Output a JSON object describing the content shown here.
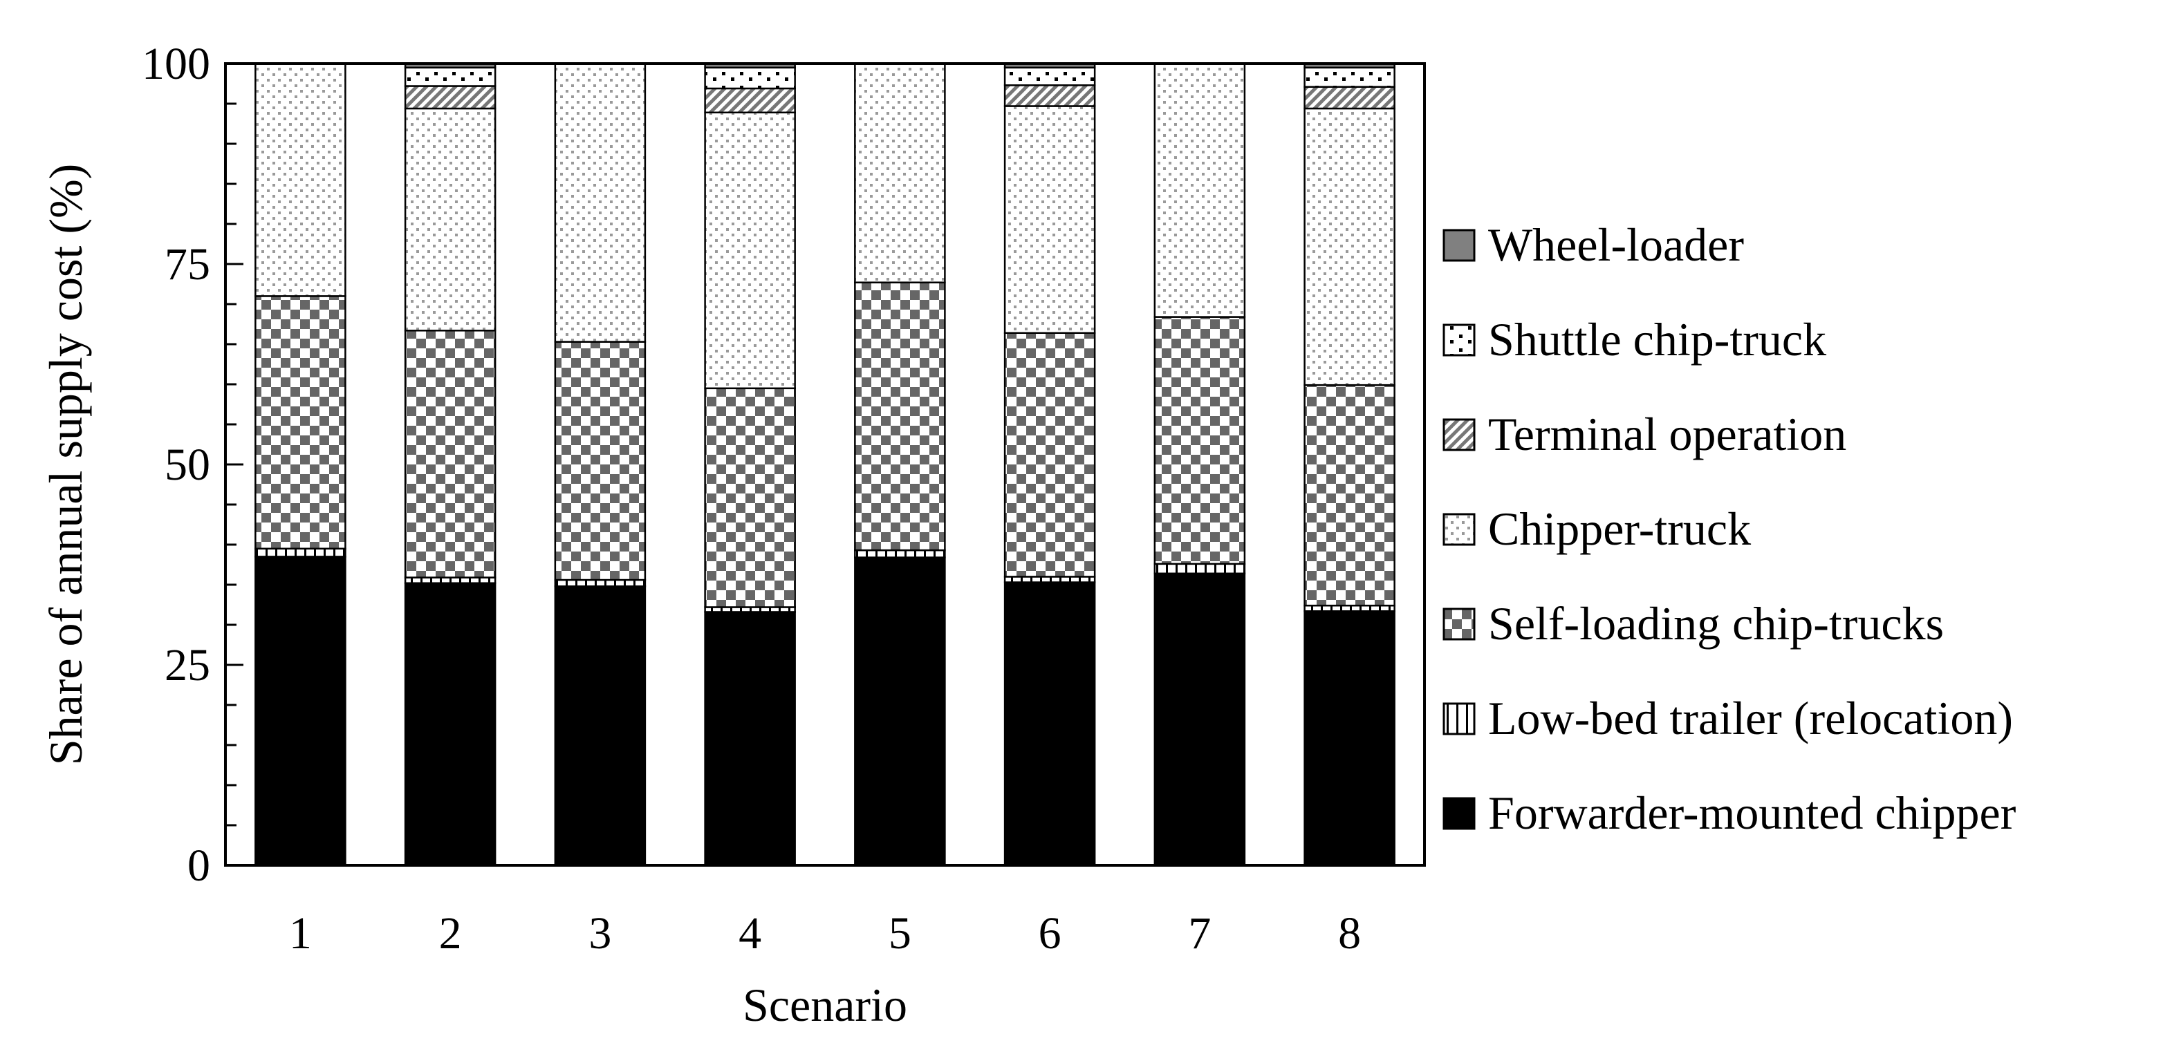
{
  "chart_data": {
    "type": "bar",
    "stacked": true,
    "title": "",
    "xlabel": "Scenario",
    "ylabel": "Share of annual supply cost (%)",
    "ylim": [
      0,
      100
    ],
    "yticks": [
      "0",
      "25",
      "50",
      "75",
      "100"
    ],
    "grid": false,
    "legend_position": "right",
    "categories": [
      "1",
      "2",
      "3",
      "4",
      "5",
      "6",
      "7",
      "8"
    ],
    "series": [
      {
        "name": "Forwarder-mounted chipper",
        "pattern": "solid",
        "color": "#000000",
        "values": [
          38.5,
          35.2,
          34.8,
          31.6,
          38.4,
          35.3,
          36.4,
          31.7
        ]
      },
      {
        "name": "Low-bed trailer (relocation)",
        "pattern": "vertical-lines",
        "color": "#ffffff",
        "values": [
          1.0,
          0.7,
          0.8,
          0.6,
          0.9,
          0.7,
          1.2,
          0.7
        ]
      },
      {
        "name": "Self-loading chip-trucks",
        "pattern": "checker",
        "color": "#666666",
        "values": [
          31.5,
          30.8,
          29.7,
          27.3,
          33.4,
          30.4,
          30.8,
          27.5
        ]
      },
      {
        "name": "Chipper-truck",
        "pattern": "dots",
        "color": "#f2f2f2",
        "values": [
          29.0,
          27.7,
          34.7,
          34.4,
          27.3,
          28.3,
          31.6,
          34.5
        ]
      },
      {
        "name": "Terminal operation",
        "pattern": "diagonal",
        "color": "#999999",
        "values": [
          0,
          2.8,
          0,
          3.0,
          0,
          2.6,
          0,
          2.7
        ]
      },
      {
        "name": "Shuttle chip-truck",
        "pattern": "sparse-dots",
        "color": "#ffffff",
        "values": [
          0,
          2.3,
          0,
          2.6,
          0,
          2.2,
          0,
          2.4
        ]
      },
      {
        "name": "Wheel-loader",
        "pattern": "solid",
        "color": "#808080",
        "values": [
          0,
          0.5,
          0,
          0.5,
          0,
          0.5,
          0,
          0.5
        ]
      }
    ]
  }
}
